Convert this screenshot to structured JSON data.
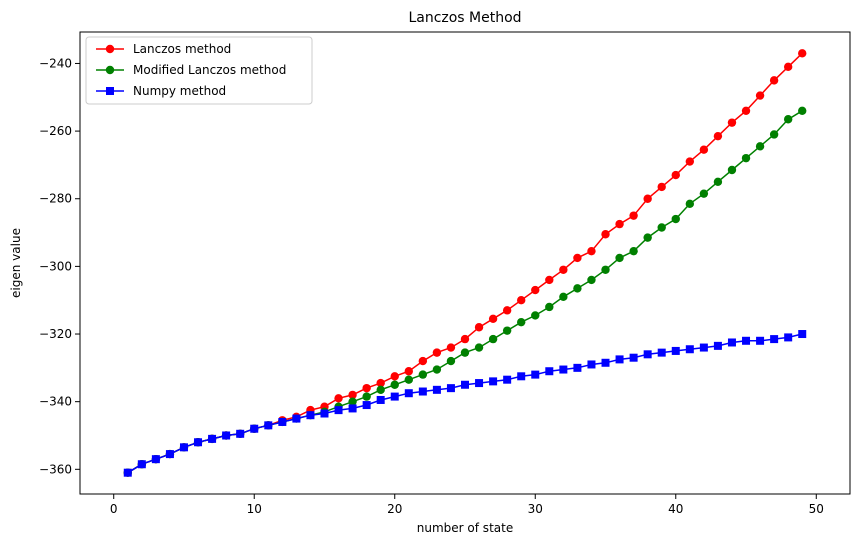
{
  "chart_data": {
    "type": "line",
    "title": "Lanczos Method",
    "xlabel": "number of state",
    "ylabel": "eigen value",
    "xlim": [
      -2.4,
      52.4
    ],
    "ylim": [
      -367.3,
      -230.7
    ],
    "xticks": [
      0,
      10,
      20,
      30,
      40,
      50
    ],
    "yticks": [
      -360,
      -340,
      -320,
      -300,
      -280,
      -260,
      -240
    ],
    "grid": false,
    "legend_position": "upper-left",
    "x": [
      1,
      2,
      3,
      4,
      5,
      6,
      7,
      8,
      9,
      10,
      11,
      12,
      13,
      14,
      15,
      16,
      17,
      18,
      19,
      20,
      21,
      22,
      23,
      24,
      25,
      26,
      27,
      28,
      29,
      30,
      31,
      32,
      33,
      34,
      35,
      36,
      37,
      38,
      39,
      40,
      41,
      42,
      43,
      44,
      45,
      46,
      47,
      48,
      49
    ],
    "series": [
      {
        "name": "Lanczos method",
        "color": "#ff0000",
        "marker": "circle",
        "values": [
          -361,
          -358.5,
          -357,
          -355.5,
          -353.5,
          -352,
          -351,
          -350,
          -349.5,
          -348,
          -347,
          -345.5,
          -344.5,
          -342.5,
          -341.5,
          -339,
          -338,
          -336,
          -334.5,
          -332.5,
          -331,
          -328,
          -325.5,
          -324,
          -321.5,
          -318,
          -315.5,
          -313,
          -310,
          -307,
          -304,
          -301,
          -297.5,
          -295.5,
          -290.5,
          -287.5,
          -285,
          -280,
          -276.5,
          -273,
          -269,
          -265.5,
          -261.5,
          -257.5,
          -254,
          -249.5,
          -245,
          -241,
          -237
        ]
      },
      {
        "name": "Modified Lanczos method",
        "color": "#008000",
        "marker": "circle",
        "values": [
          -361,
          -358.5,
          -357,
          -355.5,
          -353.5,
          -352,
          -351,
          -350,
          -349.5,
          -348,
          -347,
          -346,
          -345,
          -344,
          -343,
          -341.5,
          -340,
          -338.5,
          -336.5,
          -335,
          -333.5,
          -332,
          -330.5,
          -328,
          -325.5,
          -324,
          -321.5,
          -319,
          -316.5,
          -314.5,
          -312,
          -309,
          -306.5,
          -304,
          -301,
          -297.5,
          -295.5,
          -291.5,
          -288.5,
          -286,
          -281.5,
          -278.5,
          -275,
          -271.5,
          -268,
          -264.5,
          -261,
          -256.5,
          -254
        ]
      },
      {
        "name": "Numpy method",
        "color": "#0000ff",
        "marker": "square",
        "values": [
          -361,
          -358.5,
          -357,
          -355.5,
          -353.5,
          -352,
          -351,
          -350,
          -349.5,
          -348,
          -347,
          -346,
          -345,
          -344,
          -343.5,
          -342.5,
          -342,
          -341,
          -339.5,
          -338.5,
          -337.5,
          -337,
          -336.5,
          -336,
          -335,
          -334.5,
          -334,
          -333.5,
          -332.5,
          -332,
          -331,
          -330.5,
          -330,
          -329,
          -328.5,
          -327.5,
          -327,
          -326,
          -325.5,
          -325,
          -324.5,
          -324,
          -323.5,
          -322.5,
          -322,
          -322,
          -321.5,
          -321,
          -320
        ]
      }
    ]
  }
}
